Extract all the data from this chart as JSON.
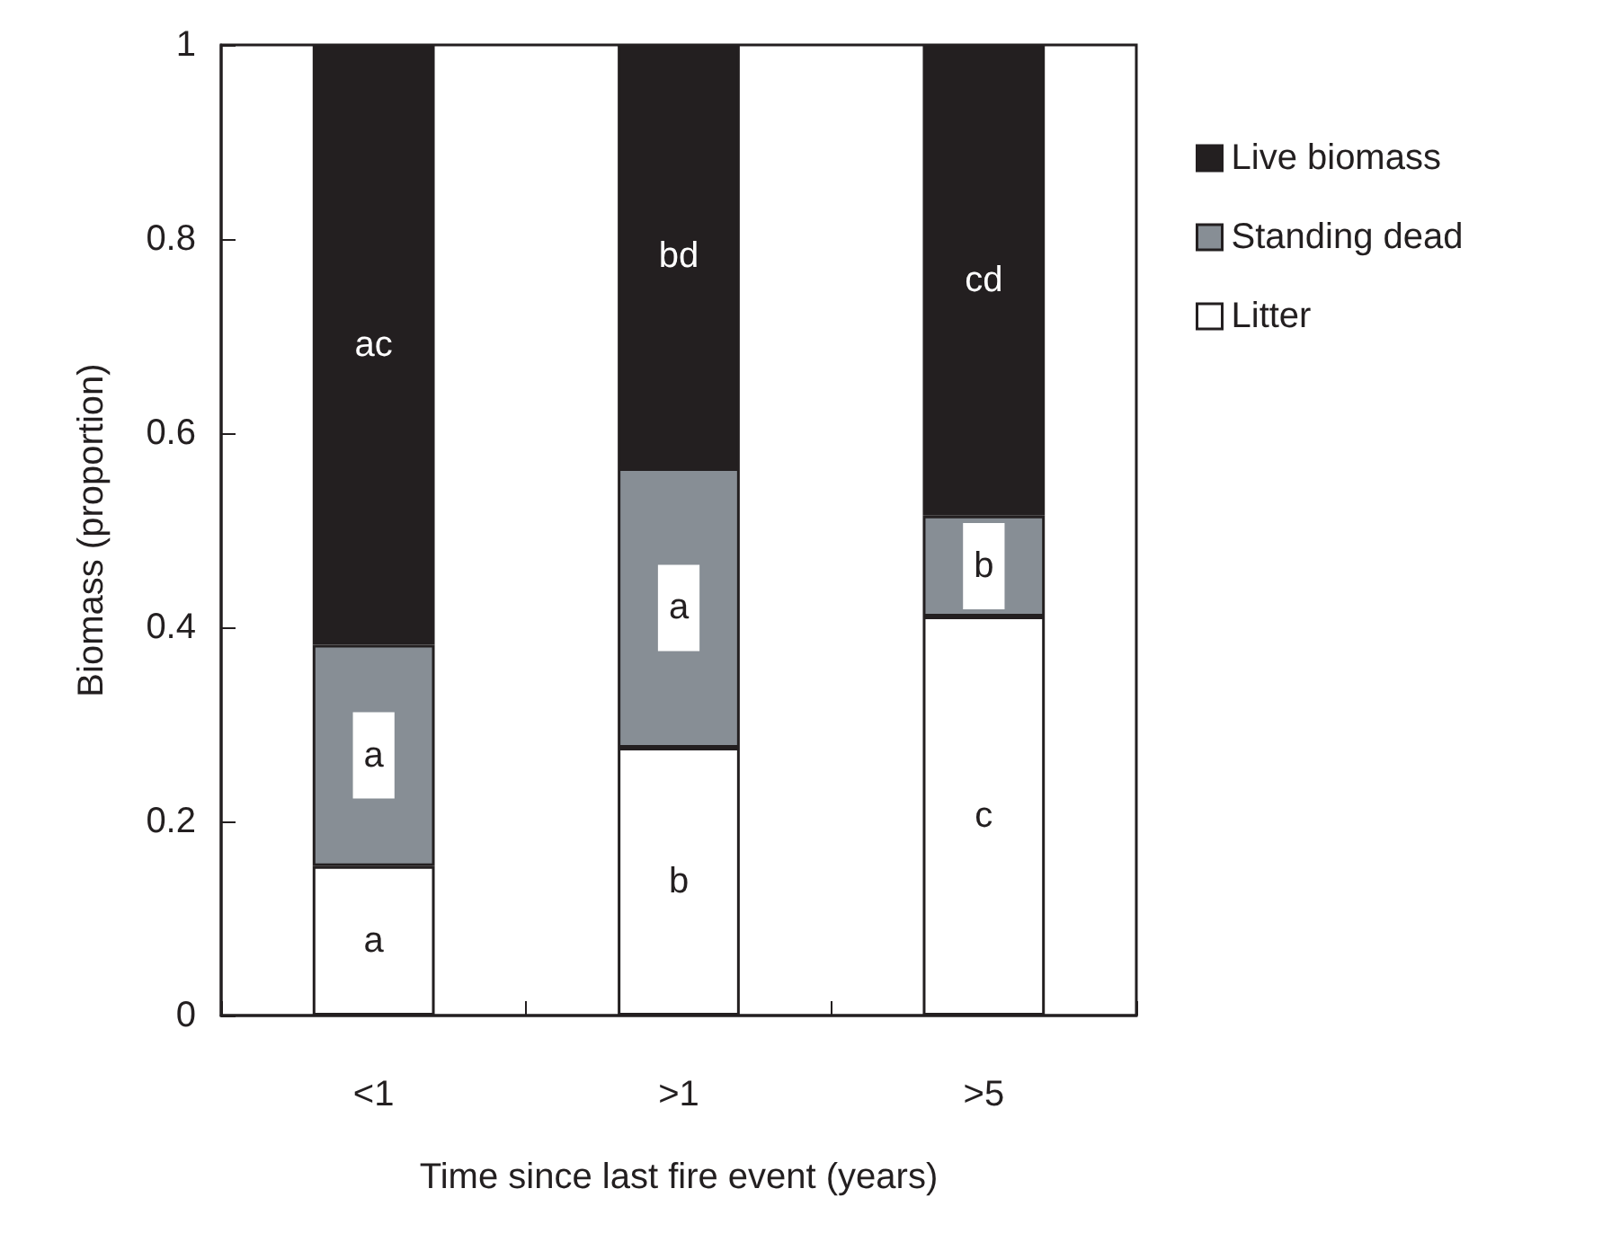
{
  "chart_data": {
    "type": "bar",
    "stacked": true,
    "xlabel": "Time since last fire event (years)",
    "ylabel": "Biomass (proportion)",
    "categories": [
      "<1",
      ">1",
      ">5"
    ],
    "series": [
      {
        "name": "Litter",
        "color": "#ffffff",
        "values": [
          0.154,
          0.276,
          0.411
        ],
        "value_labels": [
          "a",
          "b",
          "c"
        ]
      },
      {
        "name": "Standing dead",
        "color": "#878e95",
        "values": [
          0.228,
          0.288,
          0.104
        ],
        "value_labels": [
          "a",
          "a",
          "b"
        ]
      },
      {
        "name": "Live biomass",
        "color": "#231f20",
        "values": [
          0.618,
          0.436,
          0.485
        ],
        "value_labels": [
          "ac",
          "bd",
          "cd"
        ]
      }
    ],
    "ylim": [
      0,
      1
    ],
    "yticks": [
      0,
      0.2,
      0.4,
      0.6,
      0.8,
      1
    ],
    "legend": "right",
    "grid": false
  }
}
